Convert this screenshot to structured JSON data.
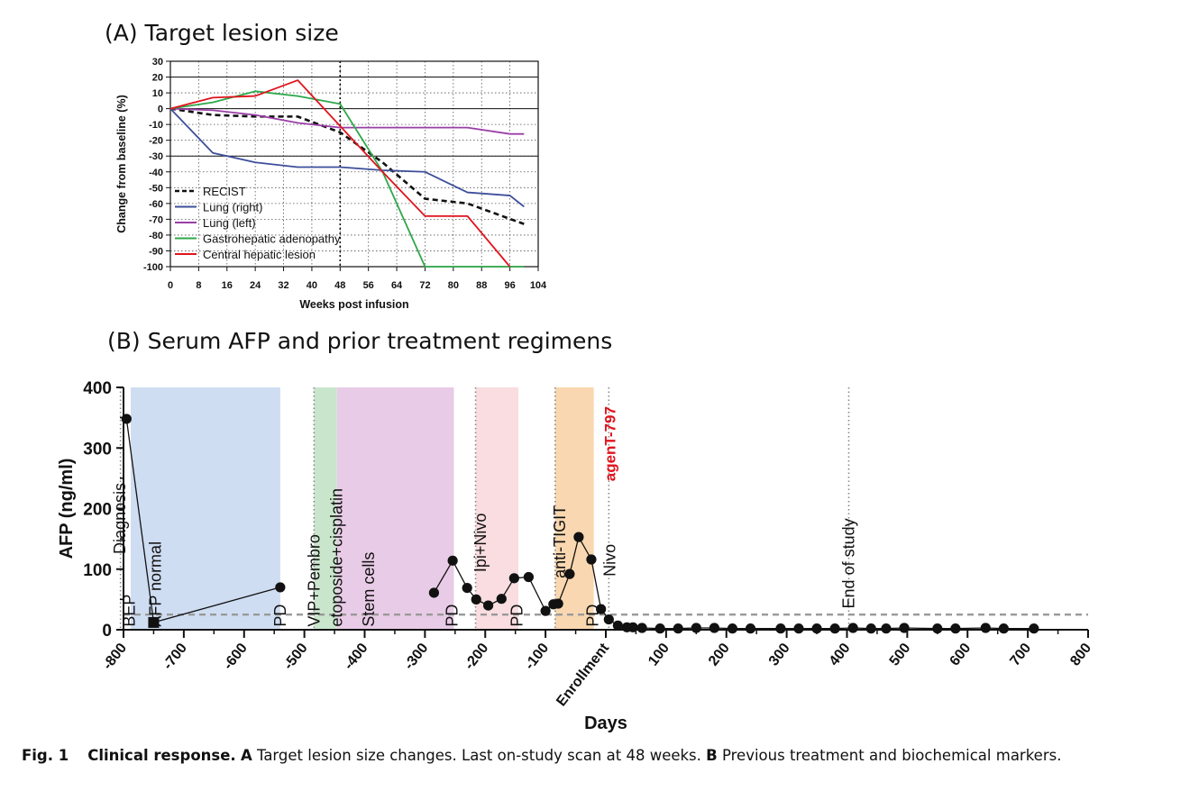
{
  "panel_a_title": "(A) Target lesion size",
  "panel_b_title": "(B) Serum AFP and prior treatment regimens",
  "caption": {
    "fig": "Fig. 1",
    "bold_title": "Clinical response.",
    "a_letter": "A",
    "a_text": "Target lesion size changes. Last on-study scan at 48 weeks.",
    "b_letter": "B",
    "b_text": "Previous treatment and biochemical markers."
  },
  "chart_data": [
    {
      "type": "line",
      "title": "(A) Target lesion size",
      "xlabel": "Weeks post infusion",
      "ylabel": "Change from baseline (%)",
      "xlim": [
        0,
        104
      ],
      "ylim": [
        -100,
        30
      ],
      "xticks": [
        0,
        8,
        16,
        24,
        32,
        40,
        48,
        56,
        64,
        72,
        80,
        88,
        96,
        104
      ],
      "yticks": [
        30,
        20,
        10,
        0,
        -10,
        -20,
        -30,
        -40,
        -50,
        -60,
        -70,
        -80,
        -90,
        -100
      ],
      "hlines": [
        0,
        -30,
        20
      ],
      "vline": 48,
      "legend_position": "bottom-left",
      "series": [
        {
          "name": "RECIST",
          "color": "#111111",
          "dashed": true,
          "x": [
            0,
            12,
            24,
            36,
            48,
            60,
            72,
            84,
            100
          ],
          "y": [
            0,
            -4,
            -5,
            -5,
            -15,
            -34,
            -57,
            -60,
            -73
          ]
        },
        {
          "name": "Lung (right)",
          "color": "#3d4f9a",
          "x": [
            0,
            12,
            24,
            36,
            48,
            60,
            72,
            84,
            96,
            100
          ],
          "y": [
            0,
            -28,
            -34,
            -37,
            -37,
            -39,
            -40,
            -53,
            -55,
            -62
          ]
        },
        {
          "name": "Lung (left)",
          "color": "#9a3ea6",
          "x": [
            0,
            12,
            24,
            36,
            48,
            60,
            72,
            84,
            96,
            100
          ],
          "y": [
            0,
            -1,
            -4,
            -9,
            -12,
            -12,
            -12,
            -12,
            -16,
            -16
          ]
        },
        {
          "name": "Gastrohepatic adenopathy",
          "color": "#2ea84a",
          "x": [
            0,
            12,
            24,
            36,
            48,
            60,
            72,
            84,
            100
          ],
          "y": [
            0,
            4,
            11,
            8,
            3,
            -40,
            -100,
            -100,
            -100
          ]
        },
        {
          "name": "Central hepatic lesion",
          "color": "#e0141e",
          "x": [
            0,
            12,
            24,
            36,
            48,
            60,
            72,
            84,
            96
          ],
          "y": [
            0,
            7,
            8,
            18,
            -11,
            -40,
            -68,
            -68,
            -100
          ]
        }
      ]
    },
    {
      "type": "scatter",
      "title": "(B) Serum AFP and prior treatment regimens",
      "xlabel": "Days",
      "ylabel": "AFP  (ng/ml)",
      "xlim": [
        -800,
        800
      ],
      "ylim": [
        0,
        400
      ],
      "xticks": [
        -800,
        -700,
        -600,
        -500,
        -400,
        -300,
        -200,
        -100,
        100,
        200,
        300,
        400,
        500,
        600,
        700,
        800
      ],
      "yticks": [
        0,
        100,
        200,
        300,
        400
      ],
      "zero_tick_label": "Enrollment",
      "reference_line": 25,
      "bands": [
        {
          "from": -788,
          "to": -540,
          "color": "#cfddf2"
        },
        {
          "from": -484,
          "to": -446,
          "color": "#c9e6cc"
        },
        {
          "from": -446,
          "to": -252,
          "color": "#e8cbe6"
        },
        {
          "from": -216,
          "to": -145,
          "color": "#f9dde0"
        },
        {
          "from": -84,
          "to": -20,
          "color": "#f9d7b0"
        }
      ],
      "vlines": [
        -805,
        -484,
        -216,
        -84,
        5,
        403
      ],
      "annotations": [
        {
          "text": "Diagnosis",
          "x": -806,
          "y": 125
        },
        {
          "text": "AFP normal",
          "x": -747,
          "y": 5
        },
        {
          "text": "VIP+Pembro",
          "x": -484,
          "y": 5
        },
        {
          "text": "etoposide+cisplatin",
          "x": -446,
          "y": 5
        },
        {
          "text": "Stem cells",
          "x": -393,
          "y": 5
        },
        {
          "text": "Ipi+Nivo",
          "x": -208,
          "y": 95
        },
        {
          "text": "anti-TIGIT",
          "x": -76,
          "y": 85
        },
        {
          "text": "Nivo",
          "x": 7,
          "y": 88
        },
        {
          "text": "agenT-797",
          "x": 7,
          "y": 245,
          "color": "#e0141e",
          "bold": true
        },
        {
          "text": "End of study",
          "x": 403,
          "y": 35
        },
        {
          "text": "BEP",
          "x": -790,
          "y": 5
        },
        {
          "text": "PD",
          "x": -540,
          "y": 5
        },
        {
          "text": "PD",
          "x": -255,
          "y": 5
        },
        {
          "text": "PD",
          "x": -147,
          "y": 5
        },
        {
          "text": "PD",
          "x": -22,
          "y": 5
        }
      ],
      "square_point": {
        "x": -750,
        "y": 12
      },
      "segments": [
        [
          [
            -795,
            348
          ],
          [
            -750,
            12
          ],
          [
            -540,
            70
          ]
        ],
        [
          [
            -285,
            61
          ],
          [
            -254,
            114
          ],
          [
            -230,
            69
          ],
          [
            -215,
            50
          ],
          [
            -195,
            40
          ],
          [
            -173,
            51
          ],
          [
            -152,
            85
          ],
          [
            -128,
            87
          ],
          [
            -100,
            31
          ],
          [
            -87,
            42
          ],
          [
            -79,
            43
          ],
          [
            -60,
            92
          ],
          [
            -45,
            153
          ],
          [
            -24,
            116
          ],
          [
            -8,
            34
          ],
          [
            5,
            17
          ],
          [
            20,
            7
          ],
          [
            35,
            4
          ],
          [
            45,
            4
          ],
          [
            60,
            3
          ],
          [
            90,
            2
          ],
          [
            120,
            2
          ],
          [
            150,
            3
          ],
          [
            180,
            3
          ],
          [
            210,
            2
          ],
          [
            240,
            2
          ],
          [
            290,
            2
          ],
          [
            320,
            2
          ],
          [
            350,
            2
          ],
          [
            380,
            2
          ],
          [
            410,
            3
          ],
          [
            440,
            2
          ],
          [
            465,
            2
          ],
          [
            495,
            3
          ],
          [
            550,
            2
          ],
          [
            580,
            2
          ],
          [
            630,
            3
          ],
          [
            660,
            2
          ],
          [
            710,
            2
          ]
        ]
      ]
    }
  ]
}
